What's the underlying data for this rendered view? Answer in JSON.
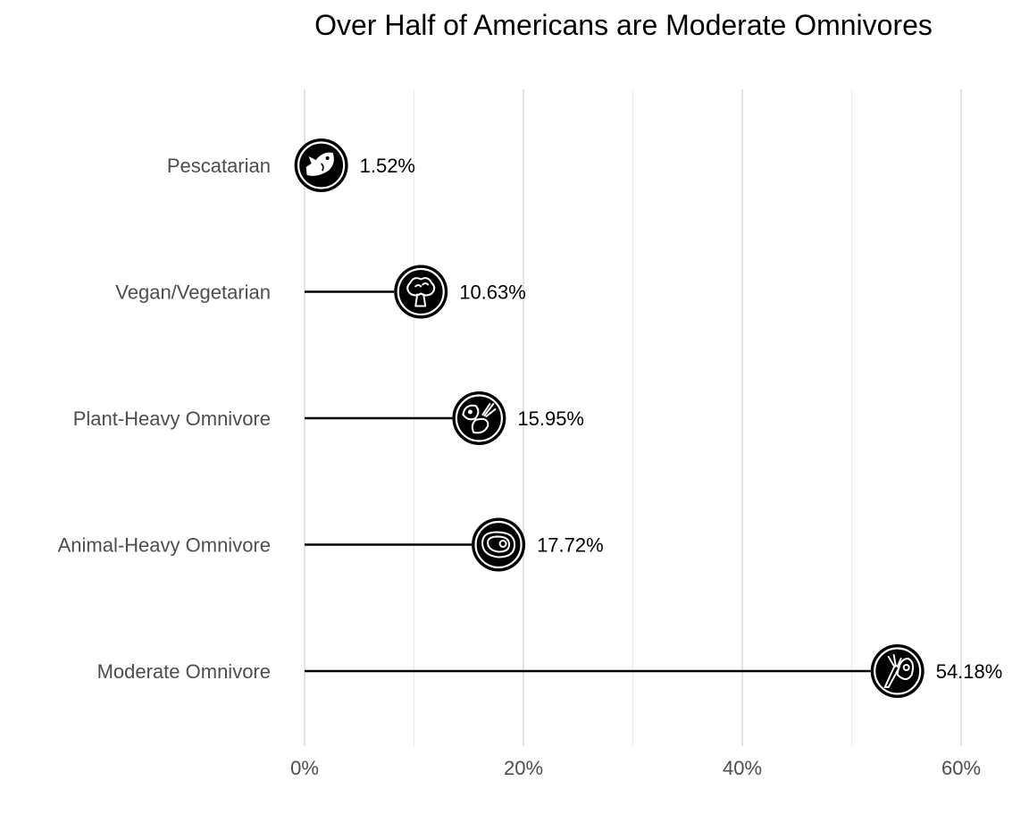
{
  "chart_data": {
    "type": "lollipop",
    "title": "Over Half of Americans are Moderate Omnivores",
    "xlabel": "",
    "ylabel": "",
    "xlim": [
      0,
      60
    ],
    "x_ticks": [
      0,
      20,
      40,
      60
    ],
    "x_tick_labels": [
      "0%",
      "20%",
      "40%",
      "60%"
    ],
    "grid": true,
    "categories": [
      {
        "label": "Pescatarian",
        "value": 1.52,
        "value_label": "1.52%",
        "icon": "fish-icon"
      },
      {
        "label": "Vegan/Vegetarian",
        "value": 10.63,
        "value_label": "10.63%",
        "icon": "broccoli-icon"
      },
      {
        "label": "Plant-Heavy Omnivore",
        "value": 15.95,
        "value_label": "15.95%",
        "icon": "meat-and-vegetable-icon"
      },
      {
        "label": "Animal-Heavy Omnivore",
        "value": 17.72,
        "value_label": "17.72%",
        "icon": "steak-icon"
      },
      {
        "label": "Moderate Omnivore",
        "value": 54.18,
        "value_label": "54.18%",
        "icon": "meat-and-carrot-icon"
      }
    ],
    "colors": {
      "stem": "#000000",
      "marker": "#000000",
      "grid": "#e3e3e3",
      "axis_text": "#4d4d4d"
    }
  }
}
